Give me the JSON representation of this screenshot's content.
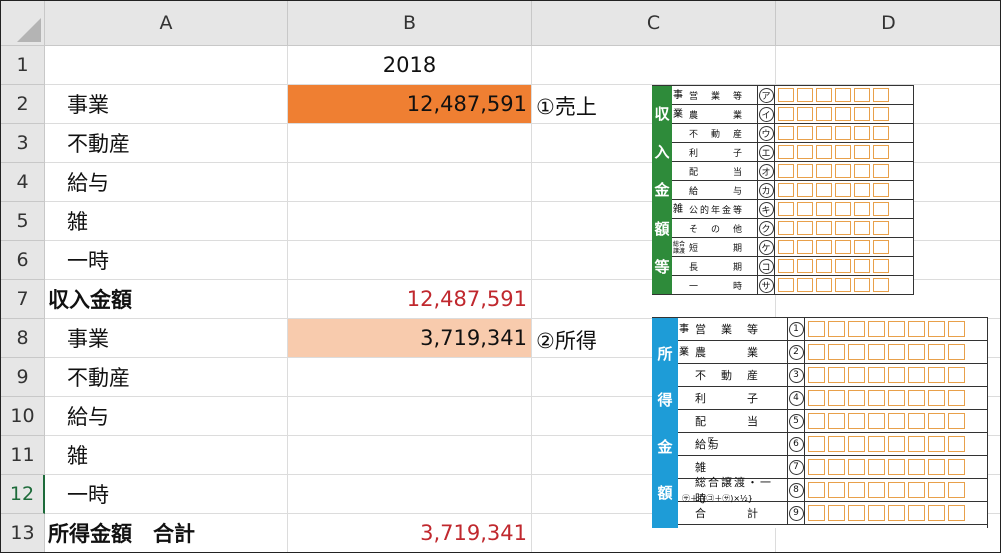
{
  "columns": [
    "A",
    "B",
    "C",
    "D"
  ],
  "rows": [
    {
      "num": "1",
      "a": "",
      "b": "2018",
      "note": ""
    },
    {
      "num": "2",
      "a": "事業",
      "b": "12,487,591",
      "note": "①売上"
    },
    {
      "num": "3",
      "a": "不動産",
      "b": "",
      "note": ""
    },
    {
      "num": "4",
      "a": "給与",
      "b": "",
      "note": ""
    },
    {
      "num": "5",
      "a": "雑",
      "b": "",
      "note": ""
    },
    {
      "num": "6",
      "a": "一時",
      "b": "",
      "note": ""
    },
    {
      "num": "7",
      "a": "収入金額",
      "b": "12,487,591",
      "note": ""
    },
    {
      "num": "8",
      "a": "事業",
      "b": "3,719,341",
      "note": "②所得"
    },
    {
      "num": "9",
      "a": "不動産",
      "b": "",
      "note": ""
    },
    {
      "num": "10",
      "a": "給与",
      "b": "",
      "note": ""
    },
    {
      "num": "11",
      "a": "雑",
      "b": "",
      "note": ""
    },
    {
      "num": "12",
      "a": "一時",
      "b": "",
      "note": ""
    },
    {
      "num": "13",
      "a": "所得金額　合計",
      "b": "3,719,341",
      "note": ""
    }
  ],
  "colors": {
    "orange": "#ef7f32",
    "peach": "#f8cbad",
    "red_text": "#c0282e",
    "form_green": "#2e8b3a",
    "form_blue": "#1e9cd7"
  },
  "form1": {
    "side": [
      "収",
      "入",
      "金",
      "額",
      "等"
    ],
    "rows": [
      {
        "g": "事",
        "l": "営　業　等",
        "s": "ア"
      },
      {
        "g": "業",
        "l": "農　　　業",
        "s": "イ"
      },
      {
        "g": "",
        "l": "不　動　産",
        "s": "ウ"
      },
      {
        "g": "",
        "l": "利　　　子",
        "s": "エ"
      },
      {
        "g": "",
        "l": "配　　　当",
        "s": "オ"
      },
      {
        "g": "",
        "l": "給　　　与",
        "s": "カ"
      },
      {
        "g": "雑",
        "l": "公的年金等",
        "s": "キ"
      },
      {
        "g": "",
        "l": "そ　の　他",
        "s": "ク"
      },
      {
        "g": "総合譲渡",
        "l": "短　　　期",
        "s": "ケ"
      },
      {
        "g": "",
        "l": "長　　　期",
        "s": "コ"
      },
      {
        "g": "",
        "l": "一　　　時",
        "s": "サ"
      }
    ]
  },
  "form2": {
    "side": [
      "所",
      "得",
      "金",
      "額"
    ],
    "rows": [
      {
        "g": "事",
        "l": "営　業　等",
        "s": "1"
      },
      {
        "g": "業",
        "l": "農　　　業",
        "s": "2"
      },
      {
        "g": "",
        "l": "不　動　産",
        "s": "3"
      },
      {
        "g": "",
        "l": "利　　　子",
        "s": "4"
      },
      {
        "g": "",
        "l": "配　　　当",
        "s": "5"
      },
      {
        "g": "",
        "l": "給与",
        "s": "6"
      },
      {
        "g": "",
        "l": "雑",
        "s": "7"
      },
      {
        "g": "",
        "l": "総合譲渡・一時",
        "s": "8"
      },
      {
        "g": "",
        "l": "合　　　計",
        "s": "9"
      }
    ],
    "kubun": "区分",
    "formula": "㋚＋{(㋙＋㋚)×½}"
  }
}
